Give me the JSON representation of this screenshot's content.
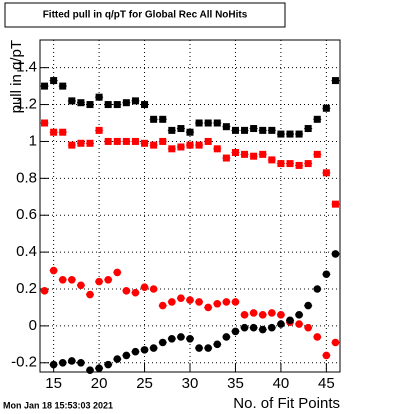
{
  "chart_data": {
    "type": "scatter",
    "title": "Fitted pull in q/pT for Global Rec All NoHits",
    "x_label": "No. of Fit Points",
    "y_label": "pull in q/pT",
    "footer": "Mon Jan 18 15:53:03 2021",
    "x": [
      14,
      15,
      16,
      17,
      18,
      19,
      20,
      21,
      22,
      23,
      24,
      25,
      26,
      27,
      28,
      29,
      30,
      31,
      32,
      33,
      34,
      35,
      36,
      37,
      38,
      39,
      40,
      41,
      42,
      43,
      44,
      45,
      46
    ],
    "series": [
      {
        "color": "#000000",
        "marker": "square",
        "values": [
          1.3,
          1.33,
          1.3,
          1.22,
          1.21,
          1.2,
          1.24,
          1.2,
          1.2,
          1.21,
          1.22,
          1.2,
          1.12,
          1.12,
          1.06,
          1.07,
          1.05,
          1.1,
          1.1,
          1.1,
          1.08,
          1.06,
          1.06,
          1.07,
          1.06,
          1.06,
          1.04,
          1.04,
          1.04,
          1.07,
          1.12,
          1.18,
          1.33
        ]
      },
      {
        "color": "#ff0000",
        "marker": "square",
        "values": [
          1.1,
          1.05,
          1.05,
          0.98,
          0.99,
          0.99,
          1.06,
          1.0,
          1.0,
          1.0,
          1.0,
          0.99,
          0.98,
          1.0,
          0.96,
          0.97,
          0.98,
          0.98,
          1.0,
          0.96,
          0.91,
          0.94,
          0.93,
          0.92,
          0.93,
          0.9,
          0.88,
          0.88,
          0.87,
          0.88,
          0.93,
          0.83,
          0.66
        ]
      },
      {
        "color": "#ff0000",
        "marker": "circle",
        "values": [
          0.19,
          0.3,
          0.25,
          0.25,
          0.22,
          0.17,
          0.24,
          0.25,
          0.29,
          0.19,
          0.18,
          0.21,
          0.2,
          0.11,
          0.13,
          0.15,
          0.14,
          0.13,
          0.1,
          0.12,
          0.13,
          0.13,
          0.06,
          0.07,
          0.06,
          0.07,
          0.06,
          0.02,
          0.01,
          -0.01,
          -0.06,
          -0.16,
          -0.09
        ]
      },
      {
        "color": "#000000",
        "marker": "circle",
        "values": [
          null,
          -0.21,
          -0.2,
          -0.19,
          -0.2,
          -0.24,
          -0.23,
          -0.21,
          -0.18,
          -0.16,
          -0.14,
          -0.13,
          -0.12,
          -0.09,
          -0.07,
          -0.06,
          -0.07,
          -0.12,
          -0.12,
          -0.1,
          -0.06,
          -0.03,
          -0.01,
          -0.01,
          -0.02,
          -0.01,
          0.01,
          0.03,
          0.06,
          0.11,
          0.2,
          0.28,
          0.39
        ]
      }
    ],
    "xlim": [
      13.5,
      46.5
    ],
    "xticks": [
      15,
      20,
      25,
      30,
      35,
      40,
      45
    ],
    "ylim": [
      -0.25,
      1.55
    ],
    "yticks": [
      -0.2,
      0,
      0.2,
      0.4,
      0.6,
      0.8,
      1,
      1.2,
      1.4
    ],
    "grid": true
  }
}
